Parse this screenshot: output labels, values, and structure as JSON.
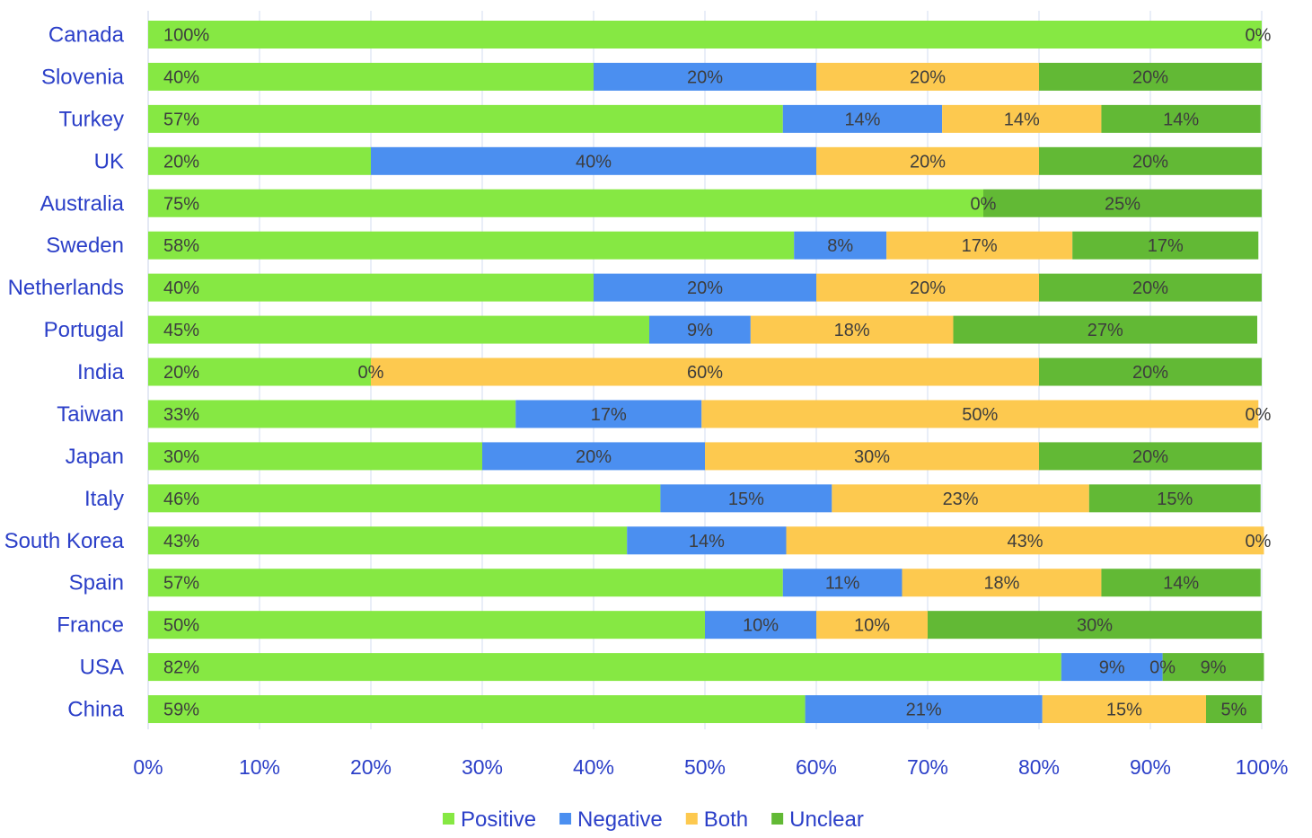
{
  "chart_data": {
    "type": "bar",
    "orientation": "horizontal",
    "stacked": "percent",
    "title": "",
    "xlabel": "",
    "ylabel": "",
    "xlim": [
      0,
      100
    ],
    "x_ticks": [
      "0%",
      "10%",
      "20%",
      "30%",
      "40%",
      "50%",
      "60%",
      "70%",
      "80%",
      "90%",
      "100%"
    ],
    "grid": true,
    "legend_position": "bottom",
    "categories": [
      "Canada",
      "Slovenia",
      "Turkey",
      "UK",
      "Australia",
      "Sweden",
      "Netherlands",
      "Portugal",
      "India",
      "Taiwan",
      "Japan",
      "Italy",
      "South Korea",
      "Spain",
      "France",
      "USA",
      "China"
    ],
    "series": [
      {
        "name": "Positive",
        "color": "#86e843",
        "values": [
          100,
          40,
          57,
          20,
          75,
          58,
          40,
          45,
          20,
          33,
          30,
          46,
          43,
          57,
          50,
          82,
          59
        ],
        "labels": [
          "100%",
          "40%",
          "57%",
          "20%",
          "75%",
          "58%",
          "40%",
          "45%",
          "20%",
          "33%",
          "30%",
          "46%",
          "43%",
          "57%",
          "50%",
          "82%",
          "59%"
        ]
      },
      {
        "name": "Negative",
        "color": "#4b8ff0",
        "values": [
          0,
          20,
          14.3,
          40,
          0,
          8.3,
          20,
          9.1,
          0,
          16.7,
          20,
          15.4,
          14.3,
          10.7,
          10,
          9.1,
          21.3
        ],
        "labels": [
          "",
          "20%",
          "14%",
          "40%",
          "",
          "8%",
          "20%",
          "9%",
          "0%",
          "17%",
          "20%",
          "15%",
          "14%",
          "11%",
          "10%",
          "9%",
          "21%"
        ]
      },
      {
        "name": "Both",
        "color": "#fdc94f",
        "values": [
          0,
          20,
          14.3,
          20,
          0,
          16.7,
          20,
          18.2,
          60,
          50,
          30,
          23.1,
          42.9,
          17.9,
          10,
          0,
          14.7
        ],
        "labels": [
          "",
          "20%",
          "14%",
          "20%",
          "0%",
          "17%",
          "20%",
          "18%",
          "60%",
          "50%",
          "30%",
          "23%",
          "43%",
          "18%",
          "10%",
          "0%",
          "15%"
        ]
      },
      {
        "name": "Unclear",
        "color": "#62b935",
        "values": [
          0,
          20,
          14.3,
          20,
          25,
          16.7,
          20,
          27.3,
          20,
          0,
          20,
          15.4,
          0,
          14.3,
          30,
          9.1,
          5
        ],
        "labels": [
          "0%",
          "20%",
          "14%",
          "20%",
          "25%",
          "17%",
          "20%",
          "27%",
          "20%",
          "0%",
          "20%",
          "15%",
          "0%",
          "14%",
          "30%",
          "9%",
          "5%"
        ]
      }
    ]
  }
}
